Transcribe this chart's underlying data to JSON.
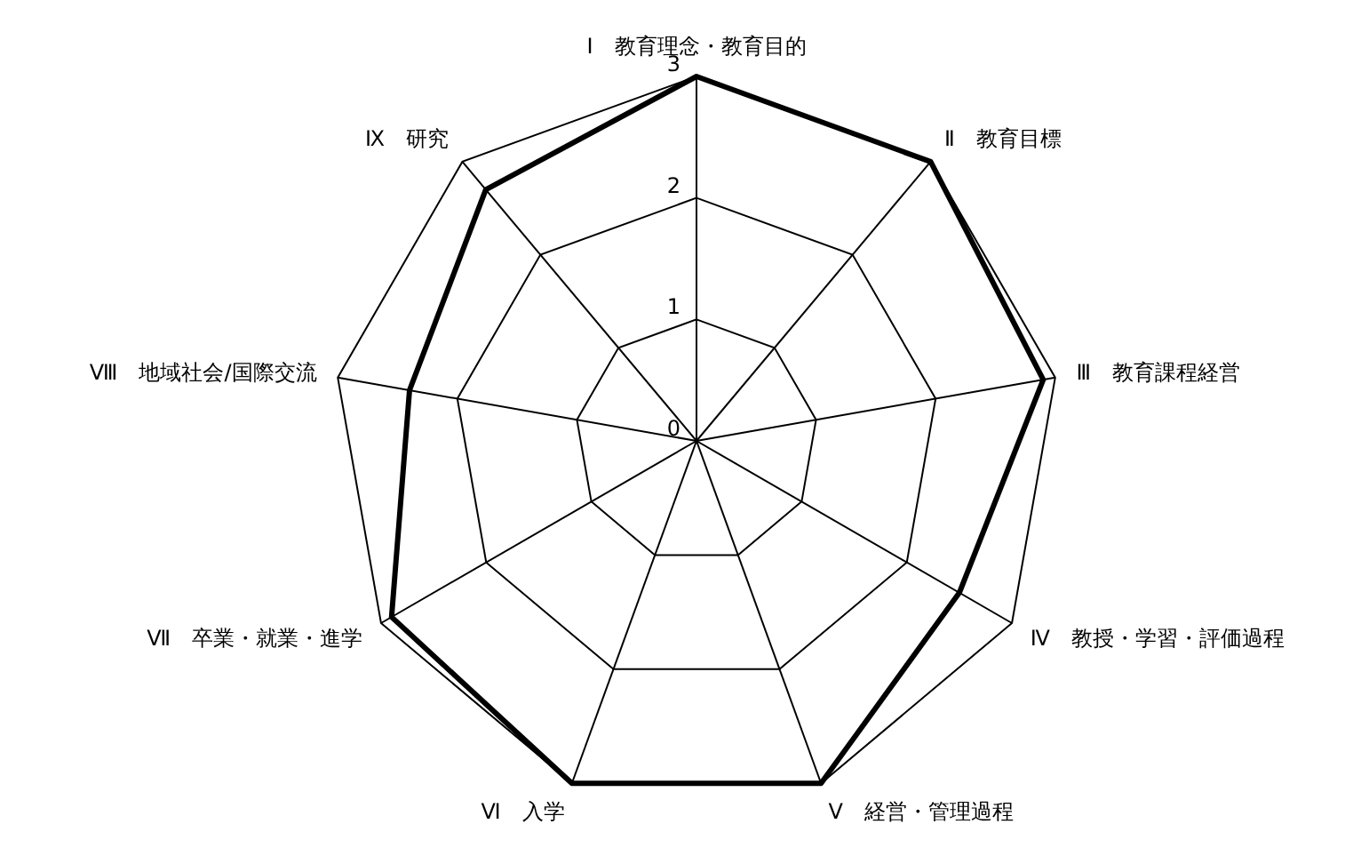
{
  "chart_data": {
    "type": "radar",
    "categories": [
      "Ⅰ　教育理念・教育目的",
      "Ⅱ　教育目標",
      "Ⅲ　教育課程経営",
      "Ⅳ　教授・学習・評価過程",
      "Ⅴ　経営・管理過程",
      "Ⅵ　入学",
      "Ⅶ　卒業・就業・進学",
      "Ⅷ　地域社会/国際交流",
      "Ⅸ　研究"
    ],
    "series": [
      {
        "color": "#000000",
        "values": [
          3,
          3,
          2.9,
          2.5,
          3,
          3,
          2.9,
          2.4,
          2.7
        ]
      }
    ],
    "ylim": [
      0,
      3
    ],
    "yticks": [
      0,
      1,
      2,
      3
    ],
    "grid": true,
    "legend": false
  }
}
